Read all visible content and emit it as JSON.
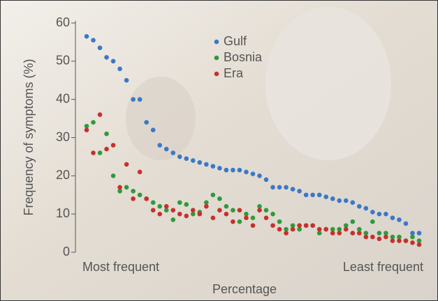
{
  "chart_data": {
    "type": "scatter",
    "xlabel": "Percentage",
    "ylabel": "Frequency of symptoms (%)",
    "x_start_label": "Most frequent",
    "x_end_label": "Least frequent",
    "ylim": [
      0,
      60
    ],
    "yticks": [
      0,
      10,
      20,
      30,
      40,
      50,
      60
    ],
    "series": [
      {
        "name": "Gulf",
        "color": "#3a78c8",
        "values": [
          56.5,
          55.5,
          53.5,
          51,
          50,
          48,
          45,
          40,
          40,
          34,
          32,
          28,
          27,
          26,
          25,
          24.5,
          24,
          23.5,
          23,
          22.5,
          22,
          21.5,
          21.5,
          21.5,
          21,
          20.5,
          20,
          19,
          17,
          17,
          17,
          16.5,
          16,
          15,
          15,
          15,
          14.5,
          14,
          13.5,
          13.5,
          13,
          12,
          11.5,
          10.5,
          10,
          10,
          9,
          8.5,
          7.5,
          5,
          5
        ]
      },
      {
        "name": "Bosnia",
        "color": "#2e9a3c",
        "values": [
          33,
          34,
          26,
          31,
          20,
          16,
          17,
          16,
          15,
          14,
          13,
          12,
          11,
          8.5,
          13,
          12.5,
          10,
          10.5,
          13,
          15,
          14,
          12,
          11,
          8,
          10,
          9,
          12,
          11,
          10,
          8,
          6,
          7,
          6,
          7,
          7,
          5,
          6,
          6,
          6,
          7,
          8,
          6,
          5,
          8,
          5,
          5,
          4,
          4,
          3,
          4,
          3
        ]
      },
      {
        "name": "Era",
        "color": "#c8302a",
        "values": [
          32,
          26,
          36,
          27,
          28,
          17,
          23,
          14,
          21,
          14,
          11,
          10,
          12,
          11,
          10,
          9.5,
          11,
          10,
          12,
          9,
          11,
          10,
          8,
          11,
          9,
          7,
          11,
          9,
          7,
          6,
          5,
          6,
          7,
          7,
          7,
          6,
          6,
          5,
          5,
          6,
          5,
          5,
          4,
          4,
          3.5,
          4,
          3,
          3,
          3,
          2.5,
          2
        ]
      }
    ]
  }
}
